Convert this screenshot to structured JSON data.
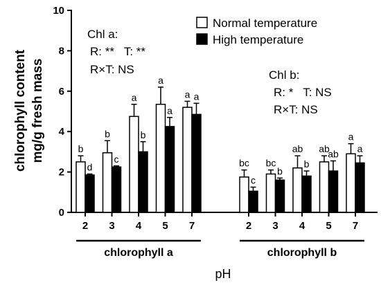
{
  "chart_data": {
    "type": "bar",
    "ylabel": [
      "chlorophyll content",
      "mg/g fresh mass"
    ],
    "xlabel": "pH",
    "ylim": [
      0,
      10
    ],
    "yticks": [
      "0",
      "2",
      "4",
      "6",
      "8",
      "10"
    ],
    "legend": {
      "position": "top-right",
      "entries": [
        "Normal temperature",
        "High temperature"
      ],
      "colors": [
        "#ffffff",
        "#000000"
      ]
    },
    "groups": [
      {
        "name": "chlorophyll a",
        "categories": [
          "2",
          "3",
          "4",
          "5",
          "7"
        ],
        "series": [
          {
            "values": [
              2.5,
              2.95,
              4.75,
              5.35,
              5.2
            ],
            "errors": [
              0.3,
              0.6,
              0.6,
              0.85,
              0.3
            ],
            "letters": [
              "b",
              "b",
              "a",
              "a",
              "a"
            ]
          },
          {
            "values": [
              1.85,
              2.25,
              3.0,
              4.25,
              4.85
            ],
            "errors": [
              0.05,
              0.05,
              0.5,
              0.45,
              0.55
            ],
            "letters": [
              "d",
              "c",
              "b",
              "a",
              "a"
            ]
          }
        ],
        "annotation": [
          "Chl a:",
          "R: **   T: **",
          "R×T: NS"
        ]
      },
      {
        "name": "chlorophyll b",
        "categories": [
          "2",
          "3",
          "4",
          "5",
          "7"
        ],
        "series": [
          {
            "values": [
              1.75,
              1.9,
              2.2,
              2.5,
              2.9
            ],
            "errors": [
              0.35,
              0.2,
              0.6,
              0.3,
              0.5
            ],
            "letters": [
              "bc",
              "bc",
              "ab",
              "ab",
              "a"
            ]
          },
          {
            "values": [
              1.05,
              1.6,
              1.8,
              2.05,
              2.45
            ],
            "errors": [
              0.2,
              0.1,
              0.25,
              0.5,
              0.35
            ],
            "letters": [
              "c",
              "b",
              "b",
              "ab",
              "a"
            ]
          }
        ],
        "annotation": [
          "Chl b:",
          "R: *   T: NS",
          "R×T: NS"
        ]
      }
    ]
  }
}
